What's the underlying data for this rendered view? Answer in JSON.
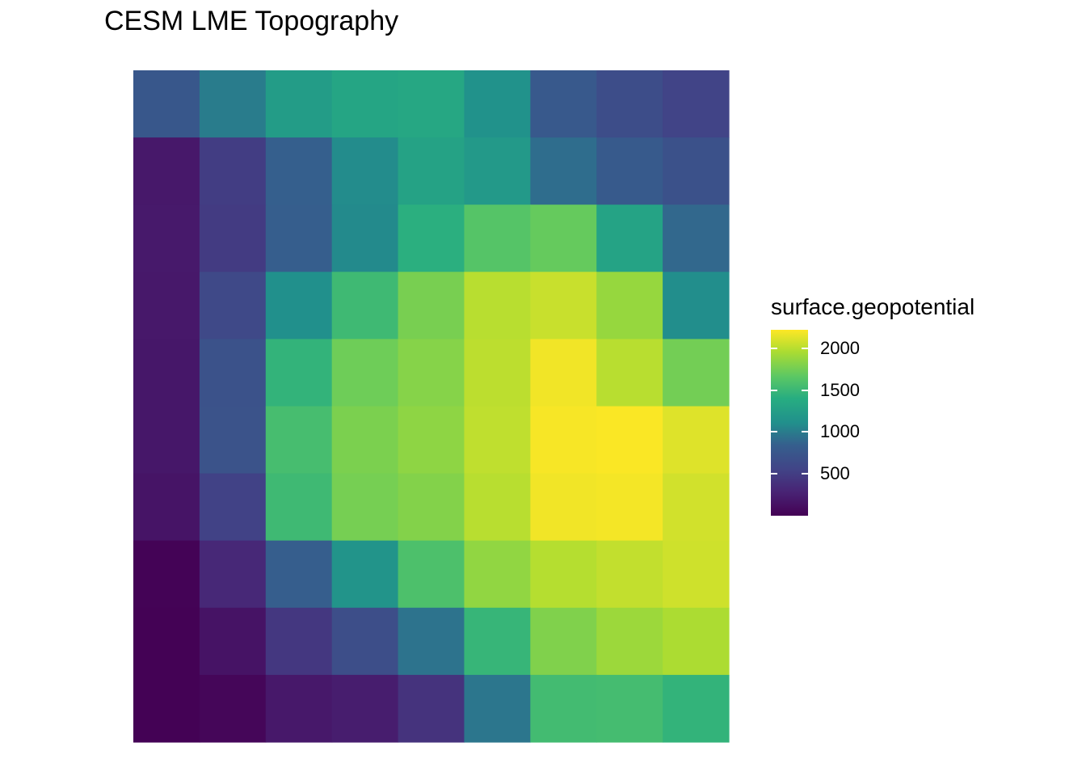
{
  "chart_data": {
    "type": "heatmap",
    "title": "CESM LME Topography",
    "xlabel": "",
    "ylabel": "",
    "grid": false,
    "legend": {
      "title": "surface.geopotential",
      "placement": "right",
      "ticks": [
        500,
        1000,
        1500,
        2000
      ],
      "tick_labels": [
        "500",
        "1000",
        "1500",
        "2000"
      ],
      "range": [
        0,
        2220
      ]
    },
    "colormap": "viridis",
    "colors": {
      "low": "#440154",
      "mid": "#21908C",
      "high": "#FDE725"
    },
    "rows": 10,
    "cols": 9,
    "values": [
      [
        760,
        1000,
        1230,
        1320,
        1340,
        1130,
        780,
        650,
        560
      ],
      [
        190,
        500,
        840,
        1090,
        1290,
        1200,
        920,
        790,
        690
      ],
      [
        200,
        480,
        830,
        1080,
        1420,
        1630,
        1700,
        1300,
        890
      ],
      [
        190,
        610,
        1110,
        1520,
        1770,
        2000,
        2050,
        1880,
        1100
      ],
      [
        180,
        700,
        1460,
        1730,
        1820,
        2010,
        2180,
        2000,
        1750
      ],
      [
        180,
        710,
        1560,
        1780,
        1850,
        2020,
        2200,
        2210,
        2120
      ],
      [
        160,
        540,
        1520,
        1760,
        1810,
        2000,
        2180,
        2190,
        2080
      ],
      [
        20,
        320,
        830,
        1150,
        1590,
        1860,
        1990,
        2030,
        2070
      ],
      [
        10,
        150,
        450,
        660,
        950,
        1480,
        1800,
        1900,
        1960
      ],
      [
        10,
        40,
        190,
        230,
        410,
        970,
        1540,
        1550,
        1460
      ]
    ]
  }
}
